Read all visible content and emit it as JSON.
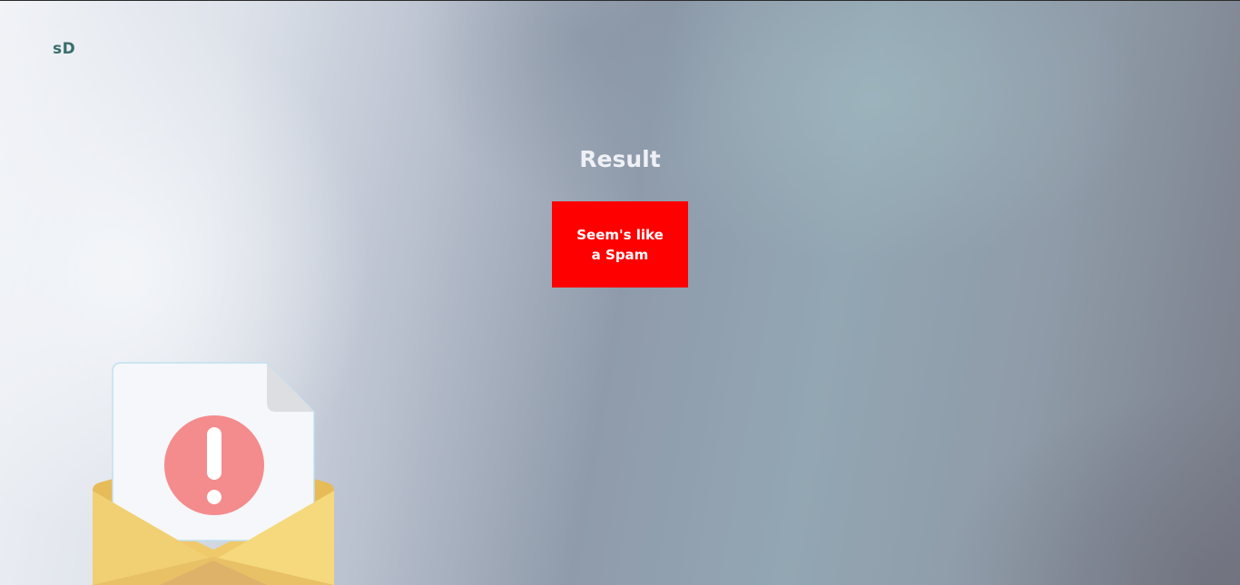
{
  "brand": {
    "logo_text": "sD"
  },
  "result": {
    "title": "Result",
    "message": "Seem's like a Spam",
    "status_color": "#ff0000"
  },
  "illustration": {
    "icon": "spam-envelope-warning-icon"
  }
}
